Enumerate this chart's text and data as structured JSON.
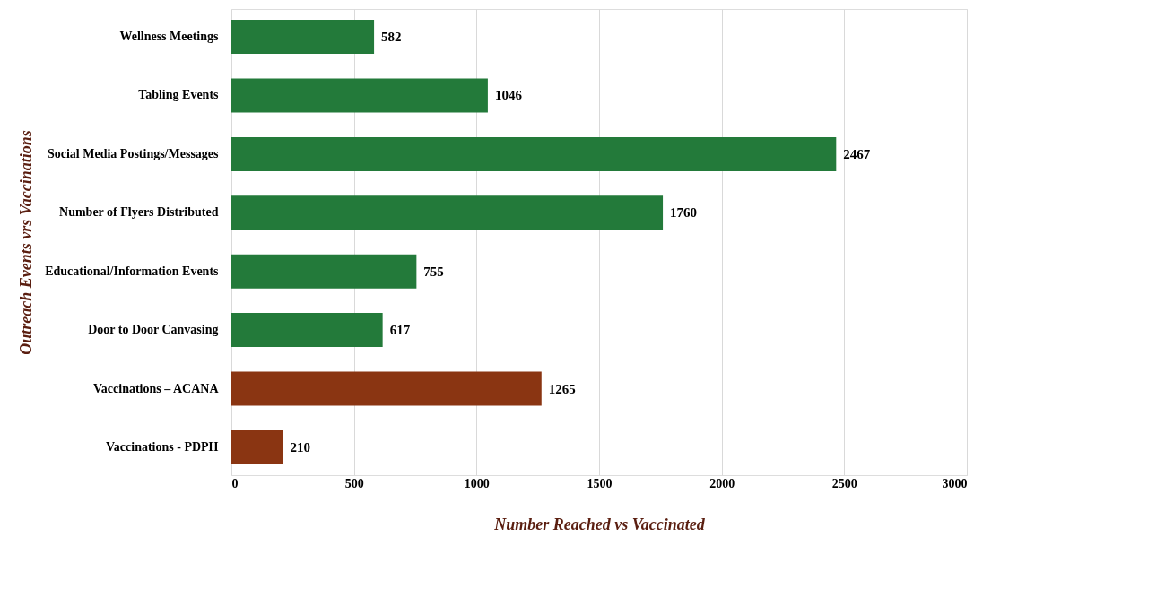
{
  "chart_data": {
    "type": "bar",
    "orientation": "horizontal",
    "categories": [
      "Wellness Meetings",
      "Tabling Events",
      "Social Media Postings/Messages",
      "Number of Flyers Distributed",
      "Educational/Information Events",
      "Door to Door Canvasing",
      "Vaccinations – ACANA",
      "Vaccinations - PDPH"
    ],
    "values": [
      582,
      1046,
      2467,
      1760,
      755,
      617,
      1265,
      210
    ],
    "colors": [
      "#237a3a",
      "#237a3a",
      "#237a3a",
      "#237a3a",
      "#237a3a",
      "#237a3a",
      "#8a3512",
      "#8a3512"
    ],
    "xlim": [
      0,
      3000
    ],
    "xticks": [
      0,
      500,
      1000,
      1500,
      2000,
      2500,
      3000
    ],
    "xlabel": "Number Reached vs Vaccinated",
    "ylabel": "Outreach Events  vrs  Vaccinations",
    "data_labels": true,
    "grid": "x"
  }
}
